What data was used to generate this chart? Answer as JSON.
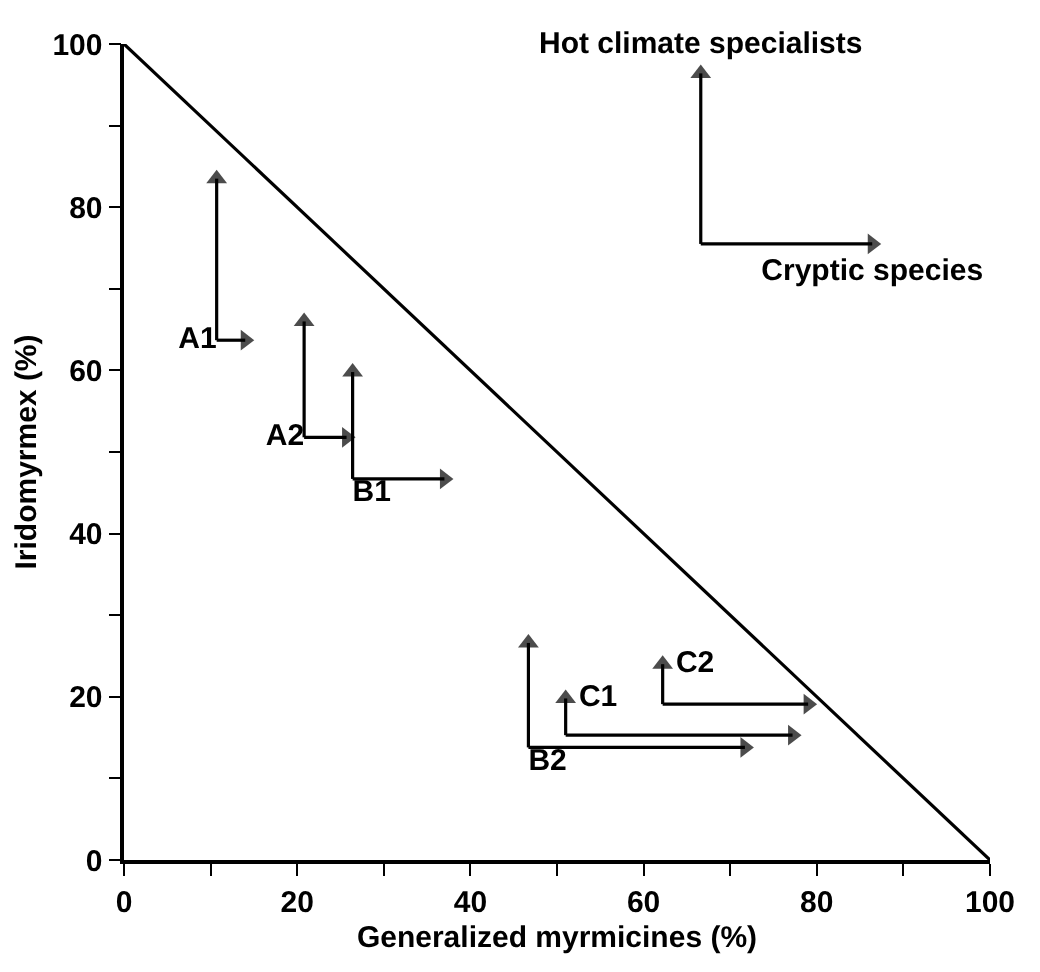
{
  "chart_data": {
    "type": "line",
    "xlabel": "Generalized myrmicines (%)",
    "ylabel": "Iridomyrmex (%)",
    "xlim": [
      0,
      100
    ],
    "ylim": [
      0,
      100
    ],
    "xticks": [
      0,
      {
        "value": 10,
        "label": null
      },
      20,
      {
        "value": 30,
        "label": null
      },
      40,
      {
        "value": 50,
        "label": null
      },
      60,
      {
        "value": 70,
        "label": null
      },
      80,
      {
        "value": 90,
        "label": null
      },
      100
    ],
    "yticks": [
      0,
      {
        "value": 10,
        "label": null
      },
      20,
      {
        "value": 30,
        "label": null
      },
      40,
      {
        "value": 50,
        "label": null
      },
      60,
      {
        "value": 70,
        "label": null
      },
      80,
      {
        "value": 90,
        "label": null
      },
      100
    ],
    "grid": false,
    "legend": false,
    "line_style": "solid",
    "series": [
      {
        "color": "#000000",
        "marker": "none",
        "x": [
          0,
          100
        ],
        "values": [
          100,
          0
        ]
      },
      {
        "name": "A1",
        "color": "#000000",
        "marker": "triangle",
        "x": [
          10.7,
          10.7
        ],
        "values": [
          63.7,
          83.5
        ]
      },
      {
        "color": "#000000",
        "marker": "triangle",
        "x": [
          10.7,
          14
        ],
        "values": [
          63.7,
          63.7
        ]
      },
      {
        "name": "A2",
        "color": "#000000",
        "marker": "triangle",
        "x": [
          20.8,
          20.8
        ],
        "values": [
          51.8,
          66
        ]
      },
      {
        "color": "#000000",
        "marker": "triangle",
        "x": [
          20.8,
          25.7
        ],
        "values": [
          51.8,
          51.8
        ]
      },
      {
        "name": "B1",
        "color": "#000000",
        "marker": "triangle",
        "x": [
          26.4,
          26.4
        ],
        "values": [
          46.7,
          59.8
        ]
      },
      {
        "color": "#000000",
        "marker": "triangle",
        "x": [
          26.4,
          37
        ],
        "values": [
          46.7,
          46.7
        ]
      },
      {
        "name": "B2",
        "color": "#000000",
        "marker": "triangle",
        "x": [
          46.7,
          46.7
        ],
        "values": [
          13.8,
          26.6
        ]
      },
      {
        "color": "#000000",
        "marker": "triangle",
        "x": [
          46.7,
          71.7
        ],
        "values": [
          13.8,
          13.8
        ]
      },
      {
        "name": "C1",
        "color": "#000000",
        "marker": "triangle",
        "x": [
          51,
          51
        ],
        "values": [
          15.3,
          19.8
        ]
      },
      {
        "color": "#000000",
        "marker": "triangle",
        "x": [
          51,
          77.2
        ],
        "values": [
          15.3,
          15.3
        ]
      },
      {
        "name": "C2",
        "color": "#000000",
        "marker": "triangle",
        "x": [
          62.2,
          62.2
        ],
        "values": [
          19.1,
          24
        ]
      },
      {
        "color": "#000000",
        "marker": "triangle",
        "x": [
          62.2,
          79
        ],
        "values": [
          19.1,
          19.1
        ]
      },
      {
        "name": "Hot climate specialists",
        "color": "#000000",
        "marker": "triangle",
        "x": [
          66.6,
          66.6
        ],
        "values": [
          75.5,
          96.4
        ]
      },
      {
        "name": "Cryptic species",
        "color": "#000000",
        "marker": "triangle",
        "x": [
          66.6,
          86.4
        ],
        "values": [
          75.5,
          75.5
        ]
      }
    ]
  }
}
